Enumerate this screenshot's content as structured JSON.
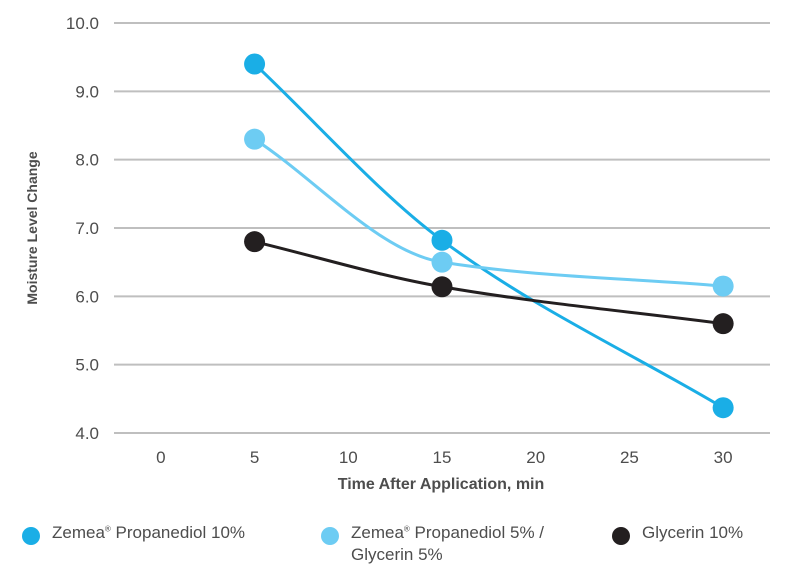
{
  "chart_data": {
    "type": "line",
    "title": "",
    "xlabel": "Time After Application, min",
    "ylabel": "Moisture Level Change",
    "xlim": [
      -2.5,
      32.5
    ],
    "ylim": [
      4.0,
      10.0
    ],
    "x_ticks": [
      0,
      5,
      10,
      15,
      20,
      25,
      30
    ],
    "y_ticks": [
      4.0,
      5.0,
      6.0,
      7.0,
      8.0,
      9.0,
      10.0
    ],
    "y_tick_labels": [
      "4.0",
      "5.0",
      "6.0",
      "7.0",
      "8.0",
      "9.0",
      "10.0"
    ],
    "grid": "horizontal",
    "legend_position": "bottom",
    "x": [
      5,
      15,
      30
    ],
    "series": [
      {
        "name_prefix": "Zemea",
        "name_suffix": " Propanediol 10%",
        "name": "Zemea® Propanediol 10%",
        "values": [
          9.4,
          6.82,
          4.37
        ],
        "color": "#1aaee6"
      },
      {
        "name_prefix": "Zemea",
        "name_suffix": " Propanediol 5% /\nGlycerin 5%",
        "name": "Zemea® Propanediol 5% / Glycerin 5%",
        "values": [
          8.3,
          6.5,
          6.15
        ],
        "color": "#6dccf3"
      },
      {
        "name_prefix": "",
        "name_suffix": "Glycerin 10%",
        "name": "Glycerin 10%",
        "values": [
          6.8,
          6.14,
          5.6
        ],
        "color": "#231f20"
      }
    ],
    "registered_mark": "®",
    "gridline_color": "#bfbfbf"
  }
}
